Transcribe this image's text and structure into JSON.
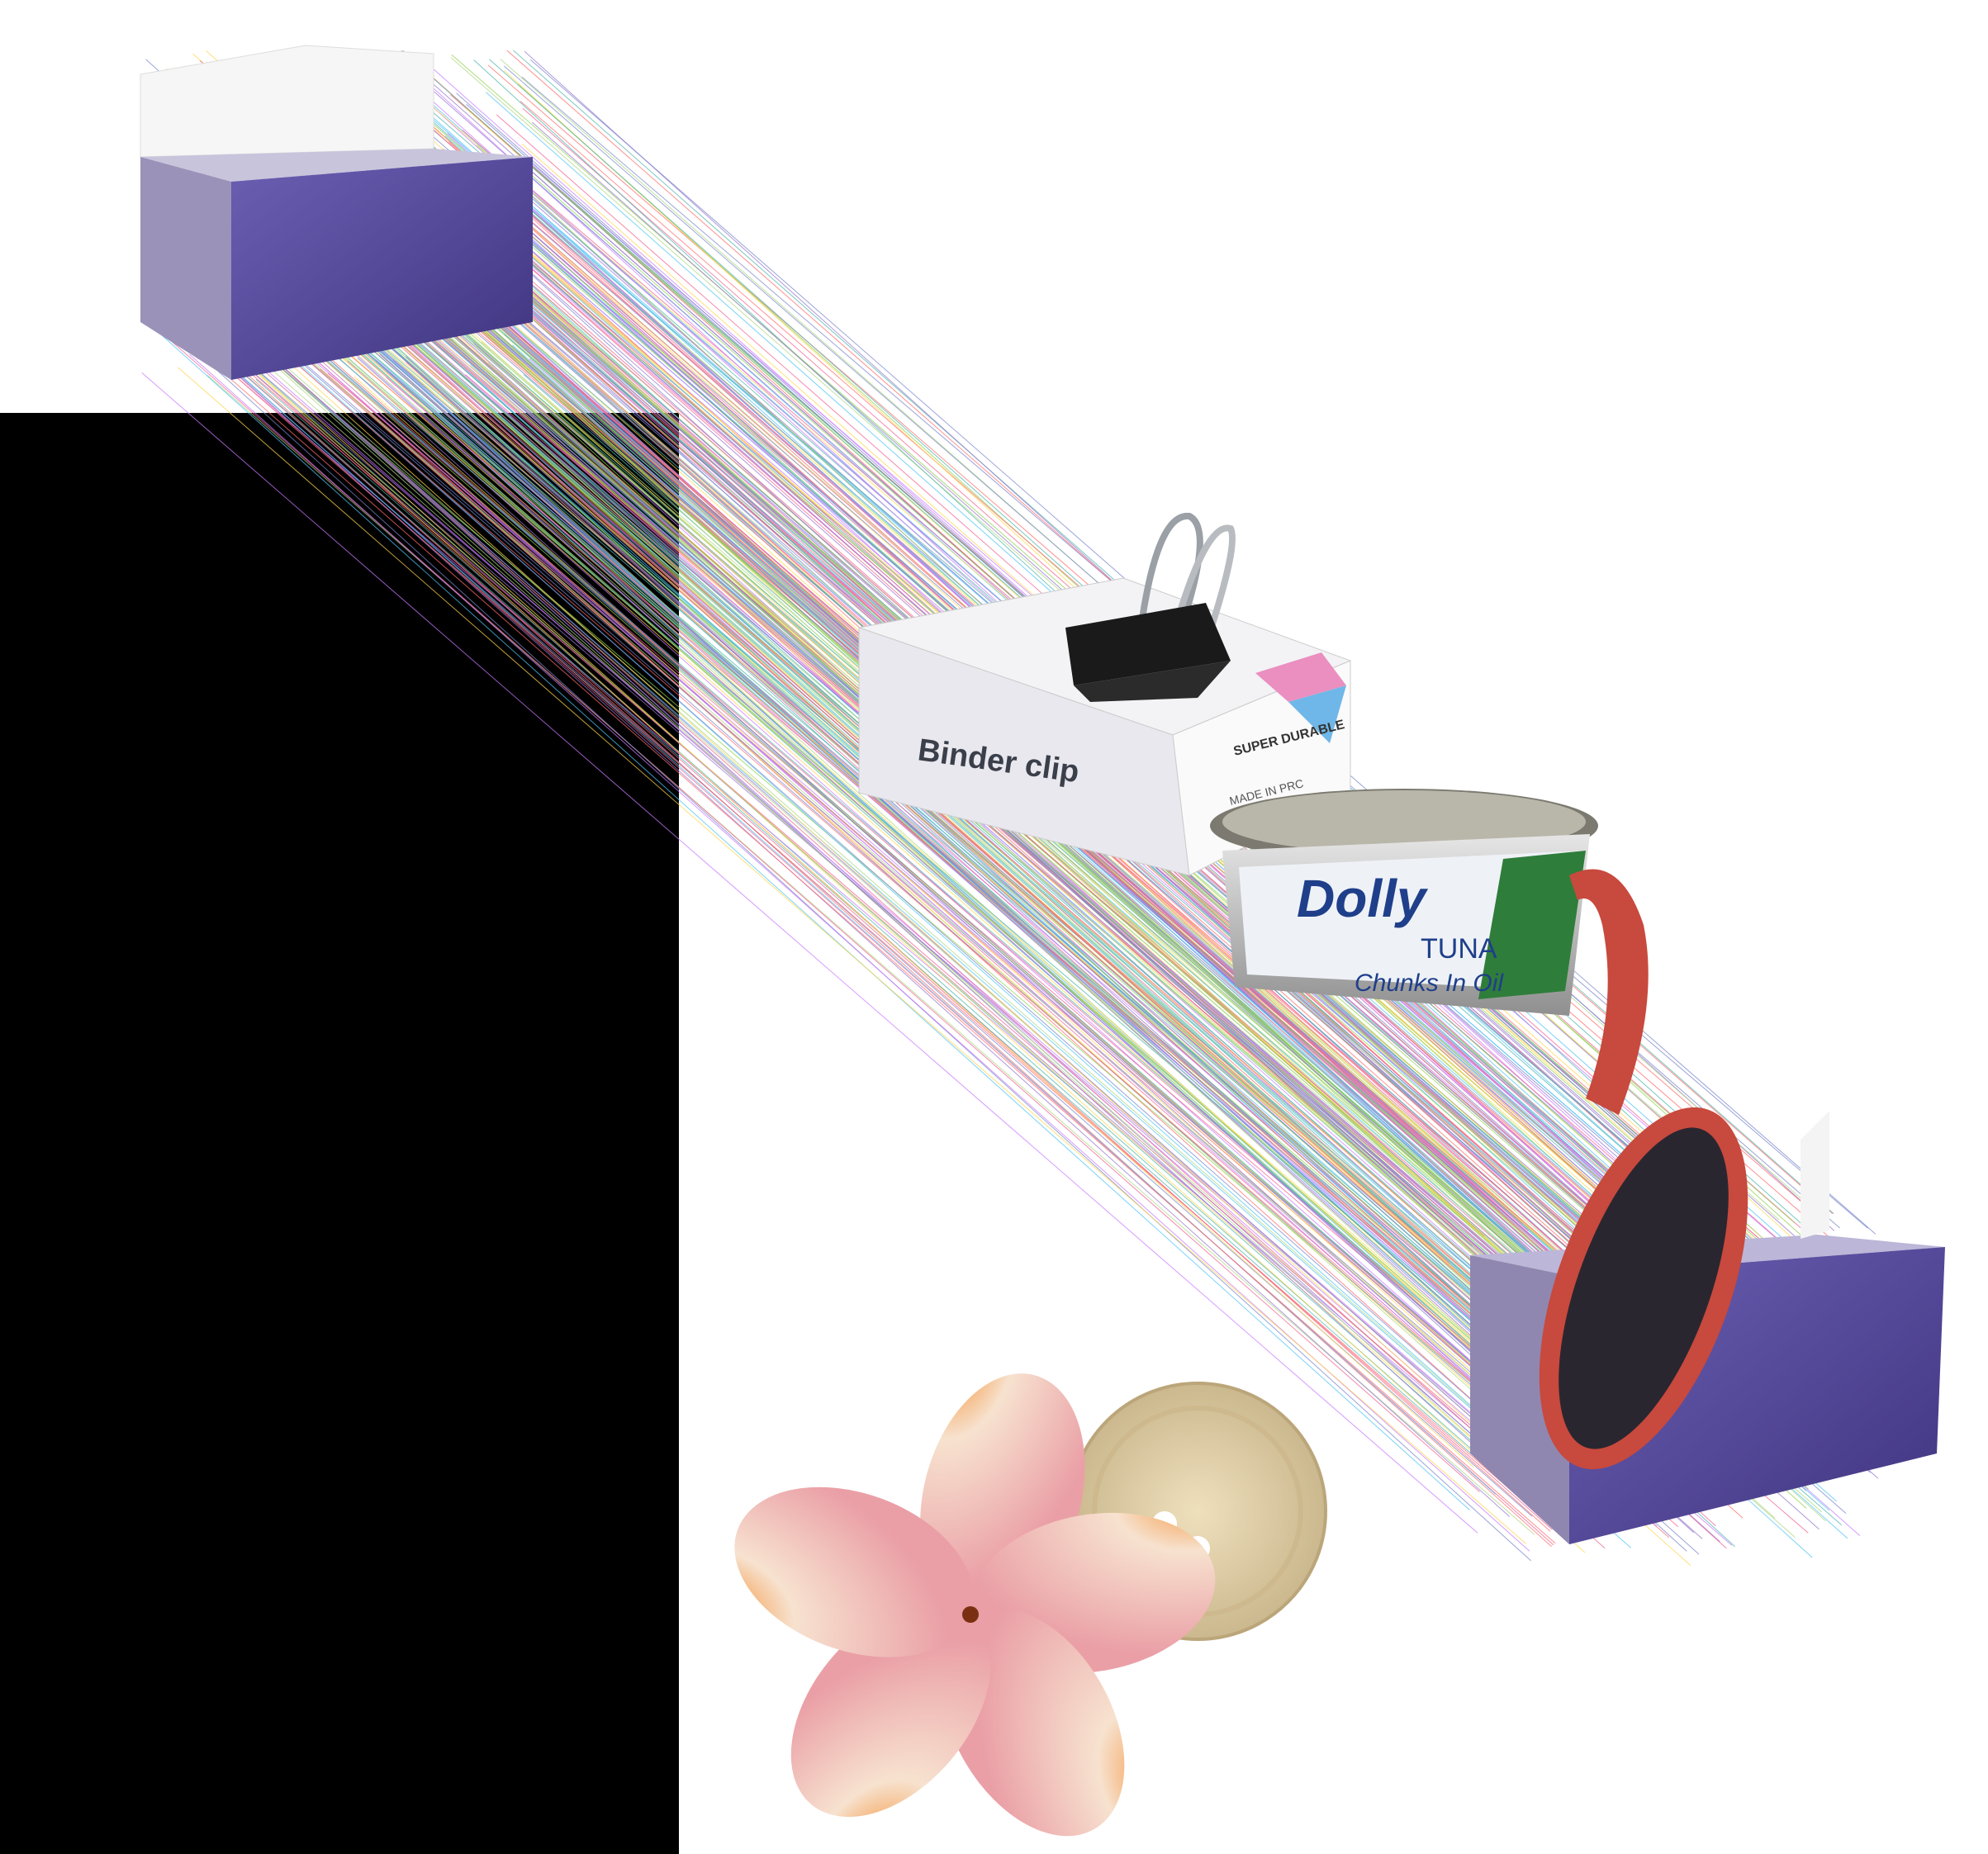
{
  "scene": {
    "description_colors": {
      "background": "#ffffff",
      "mask": "#000000",
      "tissue_box": "#5b4fa3",
      "clip_box": "#f3f3f5",
      "binder_clip": "#1a1a1a",
      "tuna_can": "#c9c9c9",
      "tuna_label_green": "#2f7d3a",
      "brush_handle": "#c8493d",
      "button": "#e3d2ac",
      "flower_petal": "#f2b8a8",
      "flower_center": "#f08a2a"
    },
    "texts": {
      "clip_box_brand": "Binder clip",
      "clip_box_side": "SUPER DURABLE",
      "clip_box_made": "MADE IN PRC",
      "tuna_brand": "Dolly",
      "tuna_product": "TUNA",
      "tuna_desc": "Chunks In Oil"
    }
  }
}
